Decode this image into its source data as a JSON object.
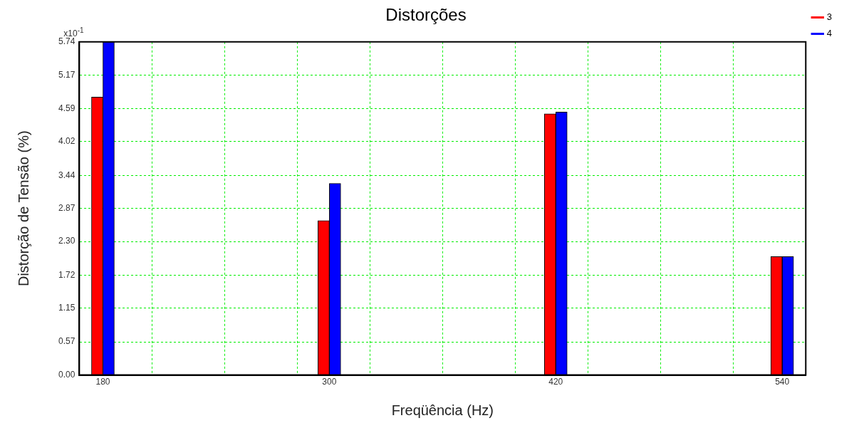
{
  "chart_data": {
    "type": "bar",
    "title": "Distorções",
    "xlabel": "Freqüência (Hz)",
    "ylabel": "Distorção de Tensão (%)",
    "annotations": [
      "x10$^{-1}$"
    ],
    "x": [
      180,
      300,
      420,
      540
    ],
    "series": [
      {
        "name": "3",
        "color": "#ff0000",
        "values": [
          4.79,
          2.66,
          4.5,
          2.04
        ]
      },
      {
        "name": "4",
        "color": "#0000ff",
        "values": [
          5.74,
          3.3,
          4.53,
          2.04
        ]
      }
    ],
    "xlim": [
      167.5,
      552.5
    ],
    "xticks": [
      180,
      {
        "value": 206,
        "label": null
      },
      {
        "value": 244.5,
        "label": null
      },
      {
        "value": 283,
        "label": null
      },
      300,
      {
        "value": 321.5,
        "label": null
      },
      {
        "value": 360,
        "label": null
      },
      {
        "value": 398.5,
        "label": null
      },
      420,
      {
        "value": 437,
        "label": null
      },
      {
        "value": 475.5,
        "label": null
      },
      {
        "value": 514,
        "label": null
      },
      540
    ],
    "ylim": [
      0,
      5.74
    ],
    "yticks": [
      {
        "value": 0,
        "label": "0.00"
      },
      0.57,
      {
        "value": 1.15,
        "label": "1.15"
      },
      1.72,
      {
        "value": 2.3,
        "label": "2.30"
      },
      2.87,
      3.44,
      4.02,
      4.59,
      5.17,
      5.74
    ],
    "grid": true,
    "legend": "right"
  }
}
